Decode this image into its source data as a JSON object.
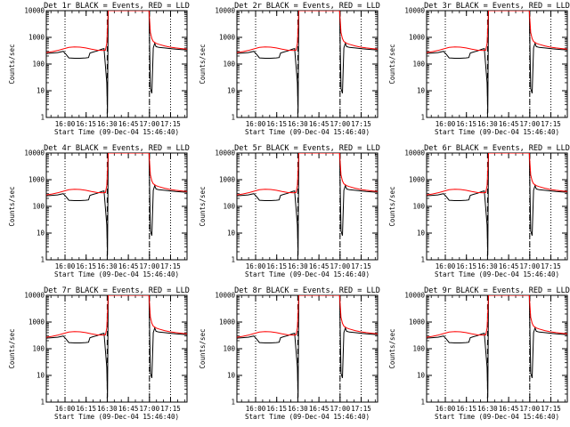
{
  "colors": {
    "events": "#000000",
    "lld": "#ff0000",
    "background": "#ffffff"
  },
  "chart_data": {
    "type": "line",
    "layout": "3x3 grid",
    "ylabel": "Counts/sec",
    "xlabel": "Start Time (09-Dec-04 15:46:40)",
    "yscale": "log",
    "ylim": [
      1,
      10000
    ],
    "y_ticks": [
      "10000",
      "1000",
      "100",
      "10",
      "1"
    ],
    "y_tick_values": [
      10000,
      1000,
      100,
      10,
      1
    ],
    "xlim_min": [
      0,
      100
    ],
    "x_ticks": [
      "16:00",
      "16:15",
      "16:30",
      "16:45",
      "17:00",
      "17:15"
    ],
    "x_tick_values": [
      13.3,
      28.3,
      43.3,
      58.3,
      73.3,
      88.3
    ],
    "dotted_vlines_min": [
      13.3,
      73.3,
      88.3
    ],
    "dashed_vlines_min": [
      43.3,
      73.3
    ],
    "panels": [
      {
        "title": "Det 1r BLACK = Events, RED = LLD"
      },
      {
        "title": "Det 2r BLACK = Events, RED = LLD"
      },
      {
        "title": "Det 3r BLACK = Events, RED = LLD"
      },
      {
        "title": "Det 4r BLACK = Events, RED = LLD"
      },
      {
        "title": "Det 5r BLACK = Events, RED = LLD"
      },
      {
        "title": "Det 6r BLACK = Events, RED = LLD"
      },
      {
        "title": "Det 7r BLACK = Events, RED = LLD"
      },
      {
        "title": "Det 8r BLACK = Events, RED = LLD"
      },
      {
        "title": "Det 9r BLACK = Events, RED = LLD"
      }
    ],
    "series": [
      {
        "name": "Events",
        "color": "#000000",
        "x": [
          0,
          4,
          8,
          12,
          14,
          16,
          20,
          24,
          28,
          30,
          31,
          33,
          36,
          38,
          40,
          41,
          43,
          43.5,
          44,
          45,
          46,
          48,
          50,
          52,
          53,
          54,
          56,
          60,
          64,
          68,
          70,
          71,
          72,
          73,
          74,
          75,
          76,
          77,
          78,
          80,
          84,
          88,
          92,
          96,
          100
        ],
        "y": [
          250,
          260,
          270,
          300,
          230,
          170,
          165,
          165,
          170,
          175,
          260,
          280,
          310,
          340,
          370,
          380,
          20,
          1.5,
          10000,
          10000,
          10000,
          10000,
          10000,
          10000,
          10000,
          10000,
          10000,
          10000,
          10000,
          10000,
          10000,
          10000,
          10000,
          10000,
          12,
          8,
          400,
          600,
          450,
          420,
          400,
          380,
          360,
          350,
          340
        ]
      },
      {
        "name": "LLD",
        "color": "#ff0000",
        "x": [
          0,
          4,
          8,
          12,
          16,
          20,
          24,
          28,
          32,
          36,
          40,
          42,
          43,
          44,
          45,
          50,
          55,
          60,
          65,
          70,
          72,
          73,
          74,
          75,
          76,
          78,
          80,
          84,
          88,
          92,
          96,
          100
        ],
        "y": [
          270,
          290,
          320,
          370,
          420,
          440,
          430,
          400,
          360,
          330,
          320,
          330,
          600,
          10000,
          10000,
          10000,
          10000,
          10000,
          10000,
          10000,
          10000,
          10000,
          1500,
          900,
          700,
          600,
          550,
          480,
          430,
          400,
          380,
          360
        ]
      }
    ]
  }
}
